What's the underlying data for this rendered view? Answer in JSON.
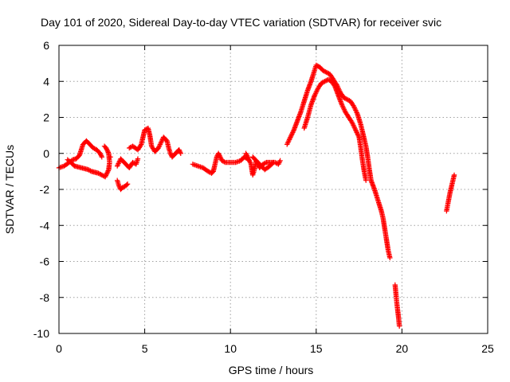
{
  "chart_data": {
    "type": "scatter",
    "title": "Day 101 of 2020, Sidereal Day-to-day VTEC variation (SDTVAR) for receiver svic",
    "xlabel": "GPS time / hours",
    "ylabel": "SDTVAR / TECUs",
    "xlim": [
      0,
      25
    ],
    "ylim": [
      -10,
      6
    ],
    "xticks": [
      0,
      5,
      10,
      15,
      20,
      25
    ],
    "yticks": [
      -10,
      -8,
      -6,
      -4,
      -2,
      0,
      2,
      4,
      6
    ],
    "grid": true,
    "marker": "+",
    "color": "#ff0000",
    "segments": [
      [
        [
          0.0,
          -0.8
        ],
        [
          0.3,
          -0.7
        ],
        [
          0.6,
          -0.5
        ],
        [
          0.8,
          -0.35
        ],
        [
          1.0,
          -0.3
        ],
        [
          1.2,
          -0.1
        ],
        [
          1.4,
          0.5
        ],
        [
          1.6,
          0.7
        ],
        [
          1.8,
          0.5
        ],
        [
          2.0,
          0.3
        ],
        [
          2.2,
          0.2
        ],
        [
          2.4,
          0.0
        ],
        [
          2.5,
          -0.2
        ]
      ],
      [
        [
          0.5,
          -0.35
        ],
        [
          0.7,
          -0.5
        ],
        [
          0.9,
          -0.7
        ],
        [
          1.1,
          -0.75
        ],
        [
          1.3,
          -0.8
        ],
        [
          1.5,
          -0.85
        ],
        [
          1.7,
          -0.9
        ],
        [
          1.9,
          -1.0
        ],
        [
          2.1,
          -1.05
        ],
        [
          2.3,
          -1.1
        ],
        [
          2.5,
          -1.2
        ],
        [
          2.7,
          -1.3
        ],
        [
          2.8,
          -1.1
        ],
        [
          2.9,
          -0.9
        ],
        [
          2.95,
          -0.5
        ],
        [
          2.9,
          0.0
        ],
        [
          2.75,
          0.3
        ],
        [
          2.65,
          0.4
        ]
      ],
      [
        [
          3.0,
          -0.2
        ]
      ],
      [
        [
          3.4,
          -1.5
        ],
        [
          3.5,
          -1.8
        ],
        [
          3.6,
          -2.0
        ],
        [
          3.7,
          -1.9
        ],
        [
          3.9,
          -1.8
        ],
        [
          4.0,
          -1.7
        ]
      ],
      [
        [
          3.4,
          -0.7
        ],
        [
          3.5,
          -0.5
        ],
        [
          3.6,
          -0.3
        ],
        [
          3.7,
          -0.4
        ],
        [
          3.9,
          -0.6
        ],
        [
          4.1,
          -0.8
        ],
        [
          4.3,
          -0.5
        ],
        [
          4.5,
          -0.6
        ],
        [
          4.6,
          -0.3
        ]
      ],
      [
        [
          4.1,
          0.3
        ],
        [
          4.3,
          0.4
        ],
        [
          4.6,
          0.2
        ],
        [
          4.8,
          0.5
        ],
        [
          5.0,
          1.3
        ],
        [
          5.2,
          1.4
        ],
        [
          5.3,
          1.0
        ],
        [
          5.4,
          0.4
        ],
        [
          5.6,
          0.1
        ],
        [
          5.8,
          0.3
        ],
        [
          6.0,
          0.7
        ],
        [
          6.1,
          0.9
        ],
        [
          6.3,
          0.7
        ],
        [
          6.4,
          0.3
        ],
        [
          6.5,
          0.0
        ],
        [
          6.6,
          -0.2
        ],
        [
          6.8,
          0.0
        ],
        [
          7.0,
          0.2
        ],
        [
          7.1,
          0.0
        ]
      ],
      [
        [
          7.8,
          -0.6
        ],
        [
          8.1,
          -0.7
        ],
        [
          8.4,
          -0.8
        ],
        [
          8.7,
          -1.0
        ],
        [
          8.9,
          -1.1
        ],
        [
          9.0,
          -1.0
        ],
        [
          9.1,
          -0.6
        ],
        [
          9.2,
          -0.2
        ],
        [
          9.3,
          0.0
        ],
        [
          9.4,
          -0.2
        ],
        [
          9.5,
          -0.4
        ],
        [
          9.7,
          -0.5
        ],
        [
          10.0,
          -0.5
        ],
        [
          10.3,
          -0.5
        ],
        [
          10.6,
          -0.4
        ],
        [
          10.8,
          -0.2
        ],
        [
          11.0,
          -0.3
        ],
        [
          11.1,
          -0.4
        ]
      ],
      [
        [
          10.9,
          0.0
        ],
        [
          11.0,
          -0.2
        ],
        [
          11.2,
          -0.6
        ],
        [
          11.3,
          -1.2
        ],
        [
          11.4,
          -0.9
        ],
        [
          11.5,
          -0.4
        ],
        [
          11.7,
          -0.8
        ],
        [
          11.9,
          -0.6
        ],
        [
          12.1,
          -0.5
        ],
        [
          12.3,
          -0.5
        ],
        [
          12.6,
          -0.5
        ],
        [
          12.8,
          -0.6
        ],
        [
          12.9,
          -0.4
        ]
      ],
      [
        [
          11.3,
          -0.2
        ],
        [
          11.6,
          -0.5
        ],
        [
          12.0,
          -0.9
        ],
        [
          12.3,
          -0.7
        ],
        [
          12.5,
          -0.5
        ]
      ],
      [
        [
          13.3,
          0.5
        ],
        [
          13.5,
          0.9
        ],
        [
          13.7,
          1.3
        ],
        [
          13.9,
          1.8
        ],
        [
          14.1,
          2.3
        ],
        [
          14.3,
          2.9
        ],
        [
          14.5,
          3.5
        ],
        [
          14.7,
          4.0
        ],
        [
          14.9,
          4.6
        ],
        [
          15.0,
          4.9
        ],
        [
          15.2,
          4.8
        ],
        [
          15.4,
          4.6
        ],
        [
          15.6,
          4.5
        ],
        [
          15.8,
          4.4
        ],
        [
          16.0,
          4.1
        ],
        [
          16.2,
          3.8
        ],
        [
          16.4,
          3.4
        ],
        [
          16.6,
          3.1
        ],
        [
          16.8,
          3.0
        ],
        [
          17.0,
          2.9
        ],
        [
          17.2,
          2.6
        ],
        [
          17.4,
          2.2
        ],
        [
          17.6,
          1.6
        ],
        [
          17.7,
          1.2
        ],
        [
          17.8,
          0.8
        ],
        [
          17.9,
          0.4
        ],
        [
          18.0,
          -0.2
        ],
        [
          18.1,
          -0.9
        ],
        [
          18.2,
          -1.5
        ],
        [
          18.4,
          -2.0
        ],
        [
          18.6,
          -2.6
        ],
        [
          18.8,
          -3.2
        ],
        [
          18.9,
          -3.6
        ],
        [
          19.0,
          -4.2
        ],
        [
          19.1,
          -4.8
        ],
        [
          19.2,
          -5.4
        ],
        [
          19.3,
          -5.8
        ]
      ],
      [
        [
          14.3,
          1.4
        ],
        [
          14.5,
          2.0
        ],
        [
          14.7,
          2.7
        ],
        [
          14.9,
          3.2
        ],
        [
          15.1,
          3.6
        ],
        [
          15.3,
          3.9
        ],
        [
          15.5,
          4.0
        ],
        [
          15.7,
          4.1
        ],
        [
          15.9,
          4.0
        ],
        [
          16.1,
          3.7
        ],
        [
          16.3,
          3.2
        ],
        [
          16.5,
          2.7
        ],
        [
          16.7,
          2.3
        ],
        [
          16.9,
          2.0
        ],
        [
          17.1,
          1.7
        ],
        [
          17.3,
          1.3
        ],
        [
          17.5,
          0.9
        ],
        [
          17.6,
          0.3
        ],
        [
          17.7,
          -0.4
        ],
        [
          17.8,
          -1.0
        ],
        [
          17.9,
          -1.5
        ]
      ],
      [
        [
          19.6,
          -7.3
        ],
        [
          19.65,
          -7.8
        ],
        [
          19.7,
          -8.3
        ],
        [
          19.75,
          -8.7
        ],
        [
          19.8,
          -9.1
        ],
        [
          19.85,
          -9.6
        ]
      ],
      [
        [
          22.6,
          -3.2
        ],
        [
          22.7,
          -2.7
        ],
        [
          22.8,
          -2.2
        ],
        [
          22.9,
          -1.8
        ],
        [
          23.0,
          -1.4
        ],
        [
          23.05,
          -1.2
        ]
      ]
    ]
  }
}
